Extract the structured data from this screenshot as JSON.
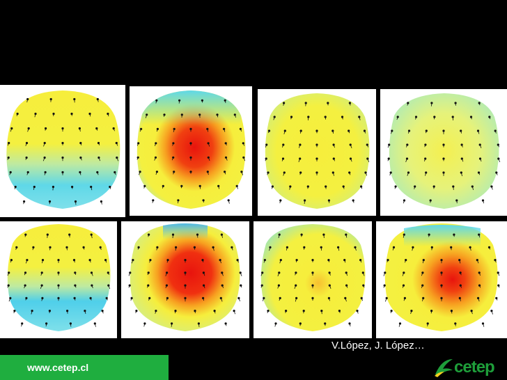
{
  "colors": {
    "background": "#000000",
    "footer_green": "#1fae3f",
    "logo_green": "#1e9e3a",
    "map_yellow": "#f6ee3c",
    "map_cyan": "#5fd8e8",
    "map_red": "#e8140e"
  },
  "maps": [
    {
      "id": "map-1",
      "pattern": "yellow-top-cyan-bottom"
    },
    {
      "id": "map-2",
      "pattern": "red-center"
    },
    {
      "id": "map-3",
      "pattern": "yellow-green-edges"
    },
    {
      "id": "map-4",
      "pattern": "pale-yellow-green"
    },
    {
      "id": "map-5",
      "pattern": "yellow-top-cyan-bottom"
    },
    {
      "id": "map-6",
      "pattern": "red-center"
    },
    {
      "id": "map-7",
      "pattern": "yellow-faint-orange"
    },
    {
      "id": "map-8",
      "pattern": "red-right"
    }
  ],
  "caption": {
    "authors": "V.López, J. López…"
  },
  "footer": {
    "url": "www.cetep.cl"
  },
  "logo": {
    "text": "cetep",
    "icon": "cetep-logo-icon"
  }
}
